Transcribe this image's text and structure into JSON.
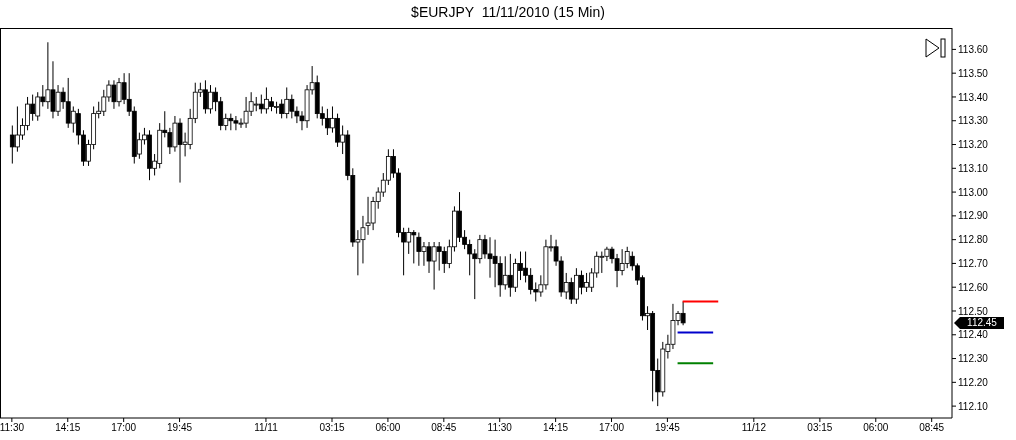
{
  "chart_data": {
    "type": "candlestick",
    "title": "$EURJPY  11/11/2010 (15 Min)",
    "x": [
      "2010-11-10T11:30",
      "2010-11-10T11:45",
      "2010-11-10T12:00",
      "2010-11-10T12:15",
      "2010-11-10T12:30",
      "2010-11-10T12:45",
      "2010-11-10T13:00",
      "2010-11-10T13:15",
      "2010-11-10T13:30",
      "2010-11-10T13:45",
      "2010-11-10T14:00",
      "2010-11-10T14:15",
      "2010-11-10T14:30",
      "2010-11-10T14:45",
      "2010-11-10T15:00",
      "2010-11-10T15:15",
      "2010-11-10T15:30",
      "2010-11-10T15:45",
      "2010-11-10T16:00",
      "2010-11-10T16:15",
      "2010-11-10T16:30",
      "2010-11-10T16:45",
      "2010-11-10T17:00",
      "2010-11-10T17:15",
      "2010-11-10T17:30",
      "2010-11-10T17:45",
      "2010-11-10T18:00",
      "2010-11-10T18:15",
      "2010-11-10T18:30",
      "2010-11-10T18:45",
      "2010-11-10T19:00",
      "2010-11-10T19:15",
      "2010-11-10T19:30",
      "2010-11-10T19:45",
      "2010-11-10T20:00",
      "2010-11-10T20:15",
      "2010-11-10T20:30",
      "2010-11-10T20:45",
      "2010-11-10T21:00",
      "2010-11-10T21:15",
      "2010-11-10T21:30",
      "2010-11-10T21:45",
      "2010-11-10T22:00",
      "2010-11-10T22:15",
      "2010-11-10T22:30",
      "2010-11-10T22:45",
      "2010-11-10T23:00",
      "2010-11-10T23:15",
      "2010-11-10T23:30",
      "2010-11-10T23:45",
      "2010-11-11T00:00",
      "2010-11-11T00:15",
      "2010-11-11T00:30",
      "2010-11-11T00:45",
      "2010-11-11T01:00",
      "2010-11-11T01:15",
      "2010-11-11T01:30",
      "2010-11-11T01:45",
      "2010-11-11T02:00",
      "2010-11-11T02:15",
      "2010-11-11T02:30",
      "2010-11-11T02:45",
      "2010-11-11T03:00",
      "2010-11-11T03:15",
      "2010-11-11T03:30",
      "2010-11-11T03:45",
      "2010-11-11T04:00",
      "2010-11-11T04:15",
      "2010-11-11T04:30",
      "2010-11-11T04:45",
      "2010-11-11T05:00",
      "2010-11-11T05:15",
      "2010-11-11T05:30",
      "2010-11-11T05:45",
      "2010-11-11T06:00",
      "2010-11-11T06:15",
      "2010-11-11T06:30",
      "2010-11-11T06:45",
      "2010-11-11T07:00",
      "2010-11-11T07:15",
      "2010-11-11T07:30",
      "2010-11-11T07:45",
      "2010-11-11T08:00",
      "2010-11-11T08:15",
      "2010-11-11T08:30",
      "2010-11-11T08:45",
      "2010-11-11T09:00",
      "2010-11-11T09:15",
      "2010-11-11T09:30",
      "2010-11-11T09:45",
      "2010-11-11T10:00",
      "2010-11-11T10:15",
      "2010-11-11T10:30",
      "2010-11-11T10:45",
      "2010-11-11T11:00",
      "2010-11-11T11:15",
      "2010-11-11T11:30",
      "2010-11-11T11:45",
      "2010-11-11T12:00",
      "2010-11-11T12:15",
      "2010-11-11T12:30",
      "2010-11-11T12:45",
      "2010-11-11T13:00",
      "2010-11-11T13:15",
      "2010-11-11T13:30",
      "2010-11-11T13:45",
      "2010-11-11T14:00",
      "2010-11-11T14:15",
      "2010-11-11T14:30",
      "2010-11-11T14:45",
      "2010-11-11T15:00",
      "2010-11-11T15:15",
      "2010-11-11T15:30",
      "2010-11-11T15:45",
      "2010-11-11T16:00",
      "2010-11-11T16:15",
      "2010-11-11T16:30",
      "2010-11-11T16:45",
      "2010-11-11T17:00",
      "2010-11-11T17:15",
      "2010-11-11T17:30",
      "2010-11-11T17:45",
      "2010-11-11T18:00",
      "2010-11-11T18:15",
      "2010-11-11T18:30",
      "2010-11-11T18:45",
      "2010-11-11T19:00",
      "2010-11-11T19:15",
      "2010-11-11T19:30",
      "2010-11-11T19:45",
      "2010-11-11T20:00",
      "2010-11-11T20:15",
      "2010-11-11T20:30"
    ],
    "ohlc": [
      [
        113.24,
        113.28,
        113.12,
        113.19
      ],
      [
        113.19,
        113.36,
        113.17,
        113.24
      ],
      [
        113.24,
        113.31,
        113.22,
        113.28
      ],
      [
        113.28,
        113.4,
        113.26,
        113.37
      ],
      [
        113.37,
        113.41,
        113.3,
        113.33
      ],
      [
        113.32,
        113.42,
        113.3,
        113.4
      ],
      [
        113.4,
        113.45,
        113.36,
        113.38
      ],
      [
        113.38,
        113.63,
        113.35,
        113.43
      ],
      [
        113.43,
        113.55,
        113.31,
        113.34
      ],
      [
        113.34,
        113.45,
        113.32,
        113.42
      ],
      [
        113.42,
        113.44,
        113.35,
        113.38
      ],
      [
        113.38,
        113.48,
        113.27,
        113.29
      ],
      [
        113.29,
        113.36,
        113.25,
        113.34
      ],
      [
        113.33,
        113.35,
        113.2,
        113.24
      ],
      [
        113.24,
        113.26,
        113.11,
        113.13
      ],
      [
        113.13,
        113.22,
        113.11,
        113.2
      ],
      [
        113.2,
        113.36,
        113.18,
        113.33
      ],
      [
        113.33,
        113.38,
        113.31,
        113.34
      ],
      [
        113.34,
        113.43,
        113.32,
        113.4
      ],
      [
        113.4,
        113.47,
        113.38,
        113.45
      ],
      [
        113.45,
        113.47,
        113.35,
        113.38
      ],
      [
        113.38,
        113.48,
        113.36,
        113.46
      ],
      [
        113.46,
        113.5,
        113.37,
        113.39
      ],
      [
        113.39,
        113.5,
        113.32,
        113.34
      ],
      [
        113.34,
        113.36,
        113.12,
        113.15
      ],
      [
        113.16,
        113.25,
        113.14,
        113.22
      ],
      [
        113.22,
        113.27,
        113.2,
        113.24
      ],
      [
        113.24,
        113.26,
        113.05,
        113.1
      ],
      [
        113.1,
        113.16,
        113.07,
        113.13
      ],
      [
        113.12,
        113.29,
        113.1,
        113.26
      ],
      [
        113.26,
        113.34,
        113.23,
        113.25
      ],
      [
        113.25,
        113.27,
        113.16,
        113.19
      ],
      [
        113.19,
        113.32,
        113.17,
        113.29
      ],
      [
        113.29,
        113.31,
        113.04,
        113.2
      ],
      [
        113.2,
        113.25,
        113.15,
        113.21
      ],
      [
        113.2,
        113.35,
        113.18,
        113.31
      ],
      [
        113.31,
        113.46,
        113.29,
        113.42
      ],
      [
        113.42,
        113.46,
        113.4,
        113.43
      ],
      [
        113.43,
        113.47,
        113.33,
        113.35
      ],
      [
        113.35,
        113.45,
        113.33,
        113.42
      ],
      [
        113.42,
        113.44,
        113.34,
        113.38
      ],
      [
        113.38,
        113.4,
        113.26,
        113.28
      ],
      [
        113.28,
        113.33,
        113.26,
        113.31
      ],
      [
        113.31,
        113.33,
        113.26,
        113.3
      ],
      [
        113.3,
        113.32,
        113.26,
        113.29
      ],
      [
        113.29,
        113.31,
        113.27,
        113.29
      ],
      [
        113.29,
        113.4,
        113.27,
        113.34
      ],
      [
        113.34,
        113.42,
        113.32,
        113.38
      ],
      [
        113.37,
        113.4,
        113.34,
        113.37
      ],
      [
        113.37,
        113.41,
        113.33,
        113.35
      ],
      [
        113.35,
        113.44,
        113.33,
        113.39
      ],
      [
        113.38,
        113.4,
        113.34,
        113.36
      ],
      [
        113.36,
        113.38,
        113.33,
        113.36
      ],
      [
        113.37,
        113.39,
        113.31,
        113.33
      ],
      [
        113.33,
        113.44,
        113.31,
        113.39
      ],
      [
        113.39,
        113.41,
        113.31,
        113.34
      ],
      [
        113.34,
        113.36,
        113.29,
        113.32
      ],
      [
        113.32,
        113.34,
        113.26,
        113.3
      ],
      [
        113.3,
        113.45,
        113.27,
        113.43
      ],
      [
        113.43,
        113.53,
        113.41,
        113.46
      ],
      [
        113.46,
        113.49,
        113.31,
        113.33
      ],
      [
        113.33,
        113.36,
        113.28,
        113.31
      ],
      [
        113.31,
        113.35,
        113.24,
        113.27
      ],
      [
        113.27,
        113.36,
        113.25,
        113.31
      ],
      [
        113.31,
        113.33,
        113.19,
        113.21
      ],
      [
        113.21,
        113.28,
        113.16,
        113.24
      ],
      [
        113.24,
        113.26,
        113.05,
        113.07
      ],
      [
        113.07,
        113.1,
        112.77,
        112.79
      ],
      [
        112.79,
        112.84,
        112.65,
        112.8
      ],
      [
        112.8,
        112.9,
        112.7,
        112.85
      ],
      [
        112.86,
        112.98,
        112.82,
        112.87
      ],
      [
        112.87,
        112.98,
        112.84,
        112.96
      ],
      [
        112.96,
        113.02,
        112.93,
        113.0
      ],
      [
        113.0,
        113.08,
        112.98,
        113.05
      ],
      [
        113.05,
        113.18,
        113.03,
        113.15
      ],
      [
        113.15,
        113.18,
        113.06,
        113.08
      ],
      [
        113.08,
        113.1,
        112.81,
        112.83
      ],
      [
        112.83,
        112.85,
        112.65,
        112.79
      ],
      [
        112.79,
        112.85,
        112.74,
        112.83
      ],
      [
        112.83,
        112.84,
        112.7,
        112.82
      ],
      [
        112.81,
        112.83,
        112.69,
        112.75
      ],
      [
        112.75,
        112.79,
        112.69,
        112.77
      ],
      [
        112.77,
        112.79,
        112.66,
        112.71
      ],
      [
        112.71,
        112.79,
        112.59,
        112.77
      ],
      [
        112.77,
        112.79,
        112.67,
        112.75
      ],
      [
        112.75,
        112.77,
        112.66,
        112.7
      ],
      [
        112.7,
        112.8,
        112.68,
        112.77
      ],
      [
        112.77,
        112.94,
        112.75,
        112.92
      ],
      [
        112.92,
        113.0,
        112.79,
        112.81
      ],
      [
        112.81,
        112.84,
        112.76,
        112.78
      ],
      [
        112.78,
        112.8,
        112.65,
        112.74
      ],
      [
        112.74,
        112.76,
        112.55,
        112.72
      ],
      [
        112.72,
        112.82,
        112.7,
        112.8
      ],
      [
        112.8,
        112.82,
        112.72,
        112.74
      ],
      [
        112.74,
        112.81,
        112.64,
        112.72
      ],
      [
        112.73,
        112.8,
        112.6,
        112.7
      ],
      [
        112.7,
        112.73,
        112.56,
        112.61
      ],
      [
        112.61,
        112.73,
        112.59,
        112.65
      ],
      [
        112.65,
        112.74,
        112.56,
        112.6
      ],
      [
        112.6,
        112.72,
        112.58,
        112.7
      ],
      [
        112.7,
        112.75,
        112.63,
        112.67
      ],
      [
        112.68,
        112.75,
        112.62,
        112.65
      ],
      [
        112.65,
        112.68,
        112.57,
        112.59
      ],
      [
        112.59,
        112.62,
        112.54,
        112.58
      ],
      [
        112.58,
        112.65,
        112.56,
        112.61
      ],
      [
        112.61,
        112.8,
        112.59,
        112.77
      ],
      [
        112.77,
        112.82,
        112.75,
        112.77
      ],
      [
        112.77,
        112.8,
        112.69,
        112.71
      ],
      [
        112.71,
        112.73,
        112.56,
        112.58
      ],
      [
        112.58,
        112.66,
        112.55,
        112.62
      ],
      [
        112.62,
        112.64,
        112.53,
        112.55
      ],
      [
        112.55,
        112.68,
        112.53,
        112.65
      ],
      [
        112.65,
        112.67,
        112.57,
        112.6
      ],
      [
        112.6,
        112.66,
        112.58,
        112.62
      ],
      [
        112.6,
        112.68,
        112.58,
        112.66
      ],
      [
        112.66,
        112.75,
        112.64,
        112.73
      ],
      [
        112.73,
        112.75,
        112.66,
        112.73
      ],
      [
        112.73,
        112.77,
        112.71,
        112.76
      ],
      [
        112.76,
        112.77,
        112.7,
        112.72
      ],
      [
        112.72,
        112.74,
        112.6,
        112.67
      ],
      [
        112.67,
        112.76,
        112.65,
        112.7
      ],
      [
        112.7,
        112.77,
        112.68,
        112.75
      ],
      [
        112.73,
        112.75,
        112.67,
        112.69
      ],
      [
        112.69,
        112.7,
        112.61,
        112.63
      ],
      [
        112.64,
        112.65,
        112.46,
        112.48
      ],
      [
        112.48,
        112.52,
        112.42,
        112.49
      ],
      [
        112.49,
        112.5,
        112.12,
        112.25
      ],
      [
        112.25,
        112.3,
        112.1,
        112.16
      ],
      [
        112.16,
        112.37,
        112.14,
        112.34
      ],
      [
        112.33,
        112.4,
        112.3,
        112.36
      ],
      [
        112.36,
        112.53,
        112.34,
        112.46
      ],
      [
        112.46,
        112.5,
        112.44,
        112.49
      ],
      [
        112.49,
        112.54,
        112.44,
        112.45
      ]
    ],
    "series": [
      {
        "type": "line",
        "color": "#ff0000",
        "x": [
          "2010-11-11T20:30",
          "2010-11-11T22:15"
        ],
        "values": [
          112.54,
          112.54
        ]
      },
      {
        "type": "line",
        "color": "#0000cc",
        "x": [
          "2010-11-11T20:15",
          "2010-11-11T22:00"
        ],
        "values": [
          112.41,
          112.41
        ]
      },
      {
        "type": "line",
        "color": "#008000",
        "x": [
          "2010-11-11T20:15",
          "2010-11-11T22:00"
        ],
        "values": [
          112.28,
          112.28
        ]
      }
    ],
    "annotations": [
      "112.45"
    ],
    "xlim": [
      "2010-11-10T10:55",
      "2010-11-12T09:45"
    ],
    "xticks": [
      {
        "value": "2010-11-10T11:30",
        "label": "11:30"
      },
      {
        "value": "2010-11-10T14:15",
        "label": "14:15"
      },
      {
        "value": "2010-11-10T17:00",
        "label": "17:00"
      },
      {
        "value": "2010-11-10T19:45",
        "label": "19:45"
      },
      {
        "value": "2010-11-11T00:00",
        "label": "11/11"
      },
      {
        "value": "2010-11-11T03:15",
        "label": "03:15"
      },
      {
        "value": "2010-11-11T06:00",
        "label": "06:00"
      },
      {
        "value": "2010-11-11T08:45",
        "label": "08:45"
      },
      {
        "value": "2010-11-11T11:30",
        "label": "11:30"
      },
      {
        "value": "2010-11-11T14:15",
        "label": "14:15"
      },
      {
        "value": "2010-11-11T17:00",
        "label": "17:00"
      },
      {
        "value": "2010-11-11T19:45",
        "label": "19:45"
      },
      {
        "value": "2010-11-12T00:00",
        "label": "11/12"
      },
      {
        "value": "2010-11-12T03:15",
        "label": "03:15"
      },
      {
        "value": "2010-11-12T06:00",
        "label": "06:00"
      },
      {
        "value": "2010-11-12T08:45",
        "label": "08:45"
      }
    ],
    "ylim": [
      112.05,
      113.69
    ],
    "yticks": [
      {
        "value": 112.1,
        "label": "112.10"
      },
      {
        "value": 112.2,
        "label": "112.20"
      },
      {
        "value": 112.3,
        "label": "112.30"
      },
      {
        "value": 112.4,
        "label": "112.40"
      },
      {
        "value": 112.5,
        "label": "112.50"
      },
      {
        "value": 112.6,
        "label": "112.60"
      },
      {
        "value": 112.7,
        "label": "112.70"
      },
      {
        "value": 112.8,
        "label": "112.80"
      },
      {
        "value": 112.9,
        "label": "112.90"
      },
      {
        "value": 113.0,
        "label": "113.00"
      },
      {
        "value": 113.1,
        "label": "113.10"
      },
      {
        "value": 113.2,
        "label": "113.20"
      },
      {
        "value": 113.3,
        "label": "113.30"
      },
      {
        "value": 113.4,
        "label": "113.40"
      },
      {
        "value": 113.5,
        "label": "113.50"
      },
      {
        "value": 113.6,
        "label": "113.60"
      }
    ],
    "grid": false,
    "legend": false
  }
}
